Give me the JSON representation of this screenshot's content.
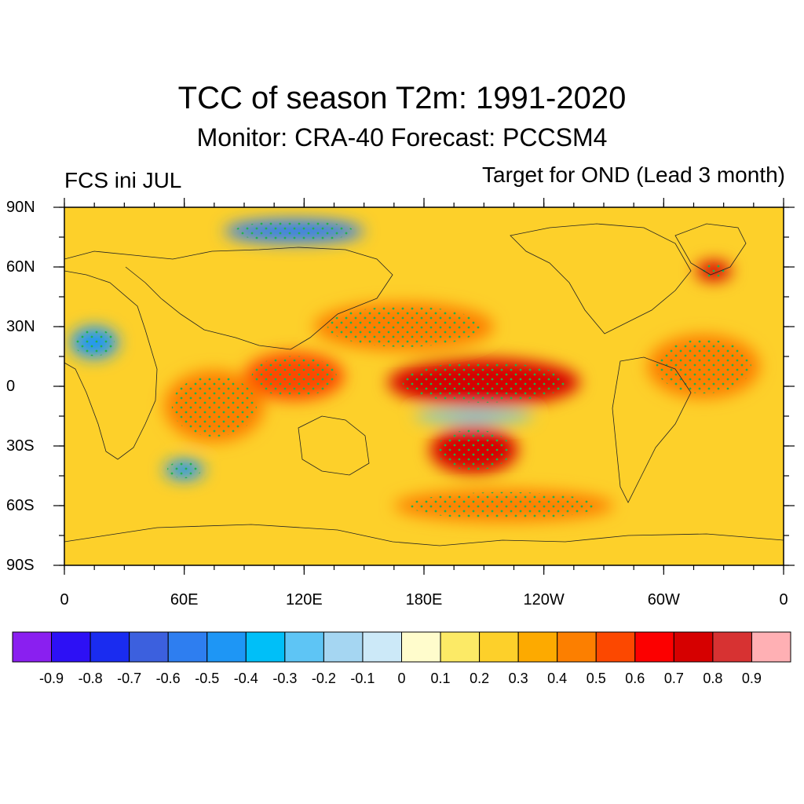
{
  "title": "TCC of season T2m: 1991-2020",
  "subtitle": "Monitor: CRA-40   Forecast: PCCSM4",
  "left_note": "FCS ini JUL",
  "right_note": "Target for OND (Lead 3 month)",
  "map": {
    "lat_labels": [
      "90N",
      "60N",
      "30N",
      "0",
      "30S",
      "60S",
      "90S"
    ],
    "lon_labels": [
      "0",
      "60E",
      "120E",
      "180E",
      "120W",
      "60W",
      "0"
    ],
    "lat_values": [
      90,
      60,
      30,
      0,
      -30,
      -60,
      -90
    ],
    "lon_values": [
      0,
      60,
      120,
      180,
      240,
      300,
      360
    ],
    "lon_range": [
      0,
      360
    ],
    "lat_range": [
      -90,
      90
    ],
    "stipple_color": "#22b14c"
  },
  "colorbar": {
    "levels": [
      "-0.9",
      "-0.8",
      "-0.7",
      "-0.6",
      "-0.5",
      "-0.4",
      "-0.3",
      "-0.2",
      "-0.1",
      "0",
      "0.1",
      "0.2",
      "0.3",
      "0.4",
      "0.5",
      "0.6",
      "0.7",
      "0.8",
      "0.9"
    ],
    "colors": [
      "#8a1ff0",
      "#2d10f5",
      "#1a2cf0",
      "#3c60de",
      "#2e7ef0",
      "#1e96f5",
      "#00bff8",
      "#5ec5f5",
      "#a5d6f2",
      "#cce9f8",
      "#fffccc",
      "#fcea66",
      "#fdd02a",
      "#fdaa00",
      "#fc7f00",
      "#fc4800",
      "#fc0000",
      "#d60000",
      "#d73232",
      "#ffb0b4"
    ]
  },
  "regions": [
    {
      "name": "equatorial-pacific",
      "lon": 210,
      "lat": 2,
      "rx": 48,
      "ry": 12,
      "level": 0.75
    },
    {
      "name": "south-pacific-band",
      "lon": 205,
      "lat": -32,
      "rx": 22,
      "ry": 12,
      "level": 0.7
    },
    {
      "name": "north-pacific",
      "lon": 170,
      "lat": 30,
      "rx": 45,
      "ry": 12,
      "level": 0.4
    },
    {
      "name": "cold-tongue",
      "lon": 205,
      "lat": -15,
      "rx": 30,
      "ry": 3,
      "level": -0.3
    },
    {
      "name": "maritime-continent",
      "lon": 115,
      "lat": 5,
      "rx": 25,
      "ry": 12,
      "level": 0.5
    },
    {
      "name": "indian-ocean",
      "lon": 75,
      "lat": -10,
      "rx": 25,
      "ry": 18,
      "level": 0.4
    },
    {
      "name": "atlantic",
      "lon": 320,
      "lat": 10,
      "rx": 28,
      "ry": 16,
      "level": 0.45
    },
    {
      "name": "greenland-hotspot",
      "lon": 325,
      "lat": 58,
      "rx": 9,
      "ry": 5,
      "level": 0.75
    },
    {
      "name": "arctic-cold",
      "lon": 115,
      "lat": 78,
      "rx": 35,
      "ry": 6,
      "level": -0.6
    },
    {
      "name": "sahara-cold",
      "lon": 15,
      "lat": 22,
      "rx": 12,
      "ry": 8,
      "level": -0.5
    },
    {
      "name": "southern-ocean",
      "lon": 220,
      "lat": -60,
      "rx": 55,
      "ry": 8,
      "level": 0.4
    },
    {
      "name": "south-atlantic-cold",
      "lon": 60,
      "lat": -42,
      "rx": 10,
      "ry": 5,
      "level": -0.45
    }
  ]
}
